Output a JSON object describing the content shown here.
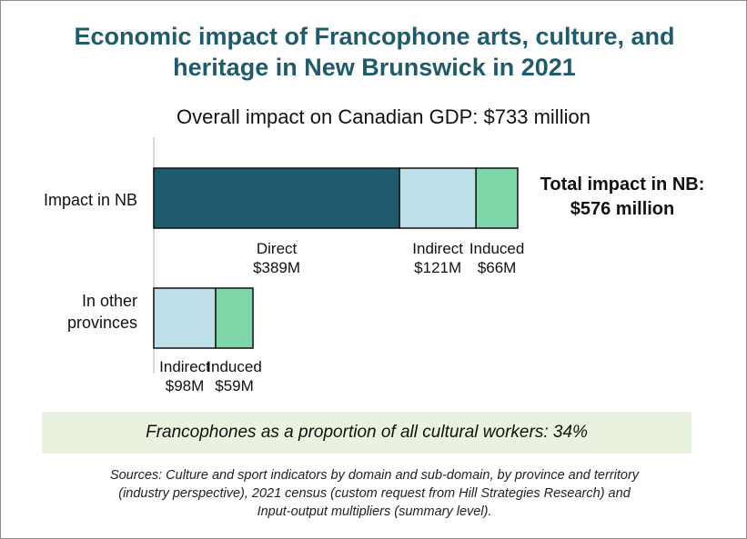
{
  "title_lines": [
    "Economic impact of Francophone arts, culture, and",
    "heritage in New Brunswick in 2021"
  ],
  "subtitle": "Overall impact on Canadian GDP: $733 million",
  "colors": {
    "direct": "#1f5b6e",
    "indirect": "#bde0ea",
    "induced": "#7fd6a8",
    "title": "#1f5b6e",
    "note_bg": "#e9f2de"
  },
  "chart_data": {
    "type": "bar",
    "orientation": "horizontal",
    "stacked": true,
    "unit": "$M",
    "categories": [
      "Impact in NB",
      "In other provinces"
    ],
    "category_label_lines": [
      [
        "Impact in NB"
      ],
      [
        "In other",
        "provinces"
      ]
    ],
    "series": [
      {
        "name": "Direct",
        "values": [
          389,
          0
        ],
        "labels": [
          "$389M",
          ""
        ]
      },
      {
        "name": "Indirect",
        "values": [
          121,
          98
        ],
        "labels": [
          "$121M",
          "$98M"
        ]
      },
      {
        "name": "Induced",
        "values": [
          66,
          59
        ],
        "labels": [
          "$66M",
          "$59M"
        ]
      }
    ],
    "annotation_lines": [
      "Total impact in NB:",
      "$576 million"
    ]
  },
  "note": "Francophones as a proportion of all cultural workers: 34%",
  "sources_lines": [
    "Sources: Culture and sport indicators by domain and sub-domain, by province and territory",
    "(industry perspective), 2021 census (custom request from Hill Strategies Research) and",
    "Input-output multipliers (summary level)."
  ]
}
